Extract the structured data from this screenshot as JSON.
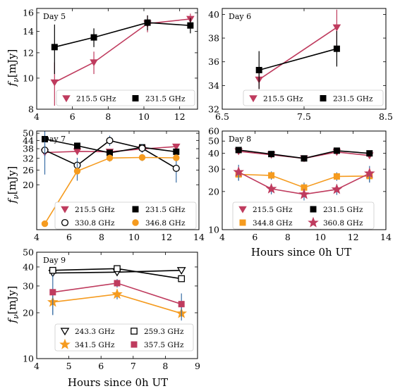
{
  "figure": {
    "ylabel_text": "f",
    "ylabel_sub": "ν",
    "ylabel_unit": "[mJy]",
    "xlabel": "Hours since 0h UT"
  },
  "colors": {
    "crimson": "#bf3b5e",
    "orange": "#f59b1f",
    "black": "#000000",
    "errbar": "#3a6ea5"
  },
  "chart_data": [
    {
      "type": "line",
      "label": "Day 5",
      "xlim": [
        4,
        13
      ],
      "ylim": [
        8,
        16.5
      ],
      "yscale": "log",
      "xticks": [
        "4",
        "6",
        "8",
        "10",
        "12"
      ],
      "yticks": [
        "8",
        "10",
        "12",
        "14",
        "16"
      ],
      "legend_position": "lower-center",
      "series": [
        {
          "name": "215.5 GHz",
          "color": "#bf3b5e",
          "marker": "triangle-down",
          "fill": true,
          "x": [
            5.0,
            7.2,
            10.2,
            12.6
          ],
          "y": [
            9.7,
            11.2,
            14.8,
            15.3
          ],
          "err": [
            1.5,
            0.9,
            0.9,
            0.6
          ]
        },
        {
          "name": "231.5 GHz",
          "color": "#000000",
          "marker": "square",
          "fill": true,
          "x": [
            5.0,
            7.2,
            10.2,
            12.6
          ],
          "y": [
            12.5,
            13.4,
            14.9,
            14.6
          ],
          "err": [
            2.2,
            0.9,
            0.8,
            0.8
          ]
        }
      ]
    },
    {
      "type": "line",
      "label": "Day 6",
      "xlim": [
        6.5,
        8.5
      ],
      "ylim": [
        32,
        40.5
      ],
      "yscale": "linear",
      "xticks": [
        "6.5",
        "7.5",
        "8.5"
      ],
      "yticks": [
        "32",
        "34",
        "36",
        "38",
        "40"
      ],
      "legend_position": "lower-center",
      "series": [
        {
          "name": "215.5 GHz",
          "color": "#bf3b5e",
          "marker": "triangle-down",
          "fill": true,
          "x": [
            6.95,
            7.9
          ],
          "y": [
            34.5,
            38.9
          ],
          "err": [
            0.8,
            1.5
          ]
        },
        {
          "name": "231.5 GHz",
          "color": "#000000",
          "marker": "square",
          "fill": true,
          "x": [
            6.95,
            7.9
          ],
          "y": [
            35.3,
            37.1
          ],
          "err": [
            1.6,
            1.5
          ]
        }
      ]
    },
    {
      "type": "line",
      "label": "Day 7",
      "xlim": [
        4,
        14
      ],
      "ylim": [
        9,
        52
      ],
      "yscale": "log",
      "xticks": [
        "4",
        "6",
        "8",
        "10",
        "12",
        "14"
      ],
      "yticks": [
        "20",
        "26",
        "32",
        "38",
        "44",
        "50"
      ],
      "legend_position": "lower-center",
      "series": [
        {
          "name": "215.5 GHz",
          "color": "#bf3b5e",
          "marker": "triangle-down",
          "fill": true,
          "x": [
            4.5,
            6.5,
            8.5,
            10.5,
            12.6
          ],
          "y": [
            35.5,
            36.2,
            36.0,
            37.8,
            39.4
          ],
          "err": [
            1.5,
            1.5,
            1.5,
            1.5,
            1.5
          ]
        },
        {
          "name": "231.5 GHz",
          "color": "#000000",
          "marker": "square",
          "fill": true,
          "x": [
            4.5,
            6.5,
            8.5,
            10.5,
            12.6
          ],
          "y": [
            45.0,
            40.0,
            35.3,
            38.9,
            36.0
          ],
          "err": [
            2,
            2,
            2,
            2,
            2
          ]
        },
        {
          "name": "330.8 GHz",
          "color": "#000000",
          "marker": "circle",
          "fill": false,
          "x": [
            4.5,
            6.5,
            8.5,
            10.5,
            12.6
          ],
          "y": [
            37.0,
            28.3,
            43.9,
            38.3,
            26.8
          ],
          "err": [
            4,
            4,
            4,
            3,
            6
          ]
        },
        {
          "name": "346.8 GHz",
          "color": "#f59b1f",
          "marker": "circle",
          "fill": true,
          "x": [
            4.5,
            6.5,
            8.5,
            10.5,
            12.6
          ],
          "y": [
            10.0,
            25.5,
            32.2,
            32.5,
            32.3
          ],
          "err": [
            14,
            4,
            2,
            2,
            2
          ]
        }
      ]
    },
    {
      "type": "line",
      "label": "Day 8",
      "xlim": [
        4,
        14
      ],
      "ylim": [
        10,
        60
      ],
      "yscale": "log",
      "xticks": [
        "4",
        "6",
        "8",
        "10",
        "12",
        "14"
      ],
      "yticks": [
        "10",
        "20",
        "30",
        "40",
        "50",
        "60"
      ],
      "legend_position": "lower-center",
      "series": [
        {
          "name": "215.5 GHz",
          "color": "#bf3b5e",
          "marker": "triangle-down",
          "fill": true,
          "x": [
            5,
            7,
            9,
            11,
            13
          ],
          "y": [
            41.5,
            39.0,
            36.5,
            41.0,
            38.5
          ],
          "err": [
            1.5,
            1.5,
            1.5,
            1.5,
            1.5
          ]
        },
        {
          "name": "231.5 GHz",
          "color": "#000000",
          "marker": "square",
          "fill": true,
          "x": [
            5,
            7,
            9,
            11,
            13
          ],
          "y": [
            42.5,
            39.5,
            36.5,
            42.0,
            40.0
          ],
          "err": [
            1.5,
            1.5,
            1.5,
            1.5,
            1.5
          ]
        },
        {
          "name": "344.8 GHz",
          "color": "#f59b1f",
          "marker": "square",
          "fill": true,
          "x": [
            5,
            7,
            9,
            11,
            13
          ],
          "y": [
            27.3,
            26.8,
            21.5,
            26.3,
            26.5
          ],
          "err": [
            3,
            2,
            2,
            2,
            3
          ]
        },
        {
          "name": "360.8 GHz",
          "color": "#bf3b5e",
          "marker": "star",
          "fill": true,
          "x": [
            5,
            7,
            9,
            11,
            13
          ],
          "y": [
            28.5,
            21.0,
            19.0,
            20.8,
            27.8
          ],
          "err": [
            4,
            2,
            2,
            2,
            4
          ]
        }
      ]
    },
    {
      "type": "line",
      "label": "Day 9",
      "xlim": [
        4,
        9
      ],
      "ylim": [
        10,
        50
      ],
      "yscale": "log",
      "xticks": [
        "4",
        "5",
        "6",
        "7",
        "8",
        "9"
      ],
      "yticks": [
        "10",
        "20",
        "30",
        "40",
        "50"
      ],
      "legend_position": "lower-center",
      "series": [
        {
          "name": "243.3 GHz",
          "color": "#000000",
          "marker": "triangle-down",
          "fill": false,
          "x": [
            4.5,
            6.5,
            8.5
          ],
          "y": [
            36.5,
            37.0,
            38.0
          ],
          "err": [
            0,
            0,
            0
          ]
        },
        {
          "name": "259.3 GHz",
          "color": "#000000",
          "marker": "square",
          "fill": false,
          "x": [
            4.5,
            6.5,
            8.5
          ],
          "y": [
            38.0,
            39.0,
            33.5
          ],
          "err": [
            0,
            0,
            0
          ]
        },
        {
          "name": "341.5 GHz",
          "color": "#f59b1f",
          "marker": "star",
          "fill": true,
          "x": [
            4.5,
            6.5,
            8.5
          ],
          "y": [
            23.5,
            26.5,
            19.8
          ],
          "err": [
            4,
            2,
            2
          ]
        },
        {
          "name": "357.5 GHz",
          "color": "#bf3b5e",
          "marker": "square",
          "fill": true,
          "x": [
            4.5,
            6.5,
            8.5
          ],
          "y": [
            27.3,
            31.3,
            22.8
          ],
          "err": [
            8,
            2,
            4
          ]
        }
      ]
    }
  ]
}
